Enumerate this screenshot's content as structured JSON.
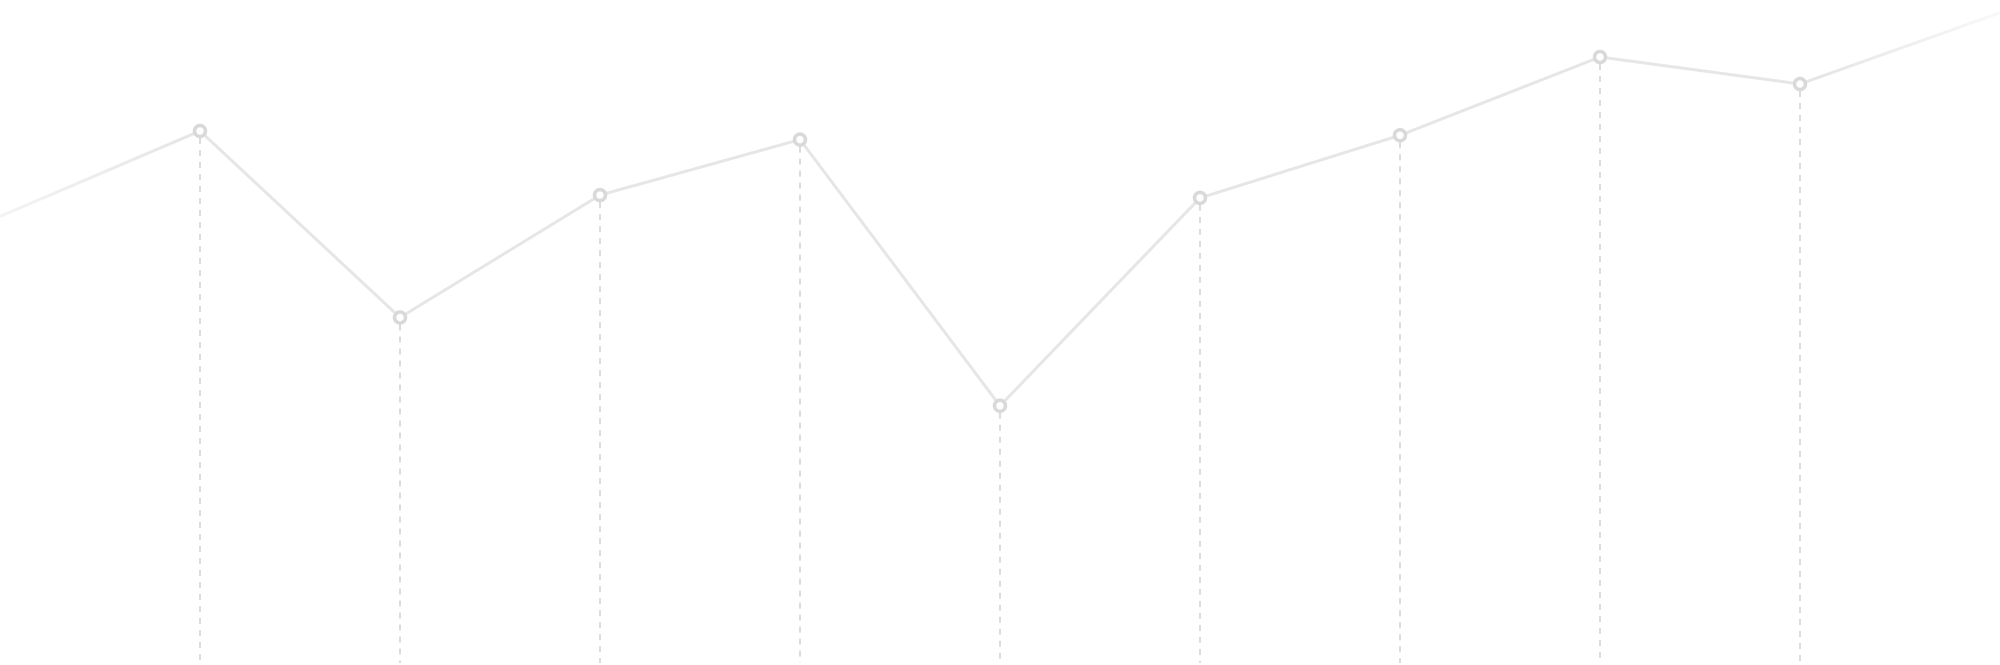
{
  "chart_data": {
    "type": "line",
    "x": [
      0,
      1,
      2,
      3,
      4,
      5,
      6,
      7,
      8,
      9,
      10
    ],
    "series": [
      {
        "values": [
          315,
          375,
          244,
          330,
          369,
          182,
          328,
          372,
          427,
          408,
          458
        ],
        "color": "#e6e6e6",
        "marker": "ring",
        "marker_color": "#d9d9d9",
        "drop_lines": true,
        "drop_line_style": "dashed",
        "drop_line_color": "#dcdcdc"
      }
    ],
    "xlim": [
      0,
      10
    ],
    "ylim": [
      0,
      467
    ],
    "title": "",
    "xlabel": "",
    "ylabel": "",
    "grid": false,
    "legend": "none",
    "edge_fade": true
  }
}
